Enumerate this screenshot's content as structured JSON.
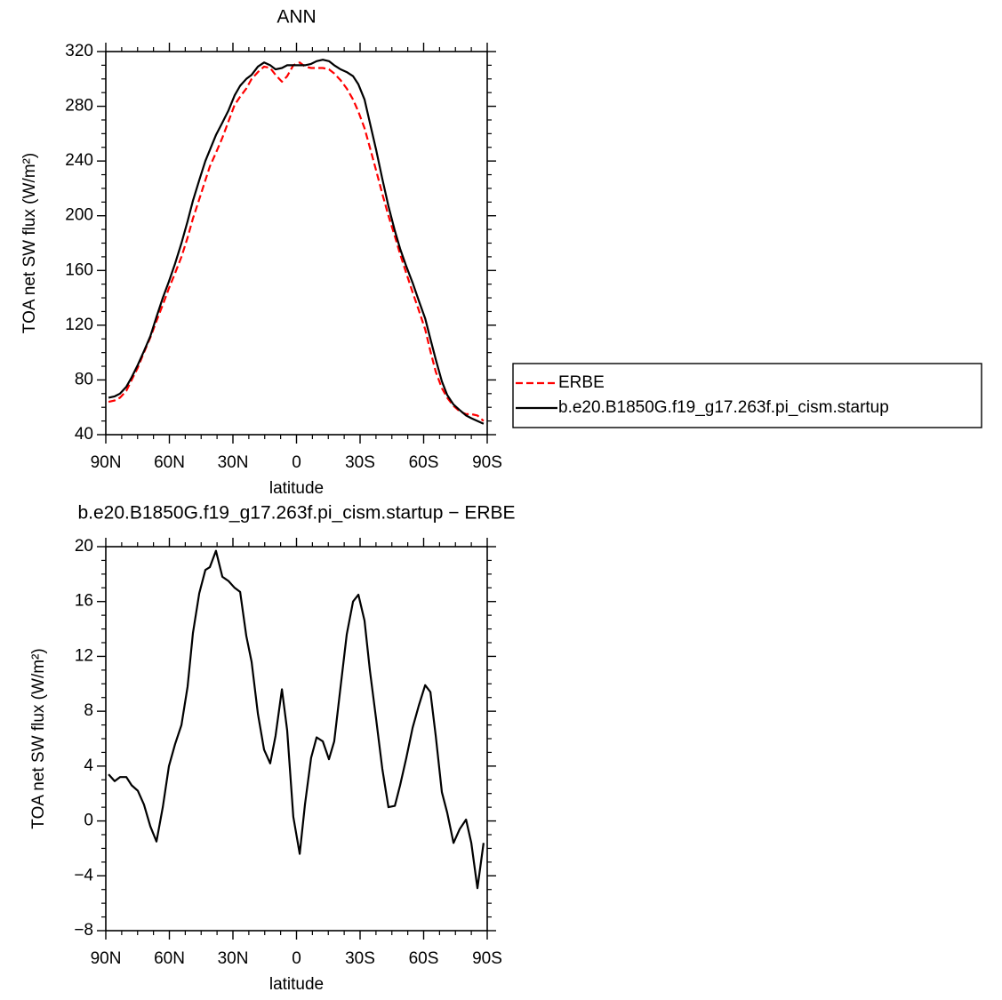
{
  "chart_data": [
    {
      "type": "line",
      "title": "ANN",
      "xlabel": "latitude",
      "ylabel": "TOA net SW flux (W/m²)",
      "xlim": [
        90,
        -90
      ],
      "xticks": [
        {
          "value": 90,
          "label": "90N"
        },
        {
          "value": 60,
          "label": "60N"
        },
        {
          "value": 30,
          "label": "30N"
        },
        0,
        {
          "value": -30,
          "label": "30S"
        },
        {
          "value": -60,
          "label": "60S"
        },
        {
          "value": -90,
          "label": "90S"
        }
      ],
      "ylim": [
        40,
        320
      ],
      "yticks": [
        40,
        80,
        120,
        160,
        200,
        240,
        280,
        320
      ],
      "legend": "right",
      "x": [
        88.7,
        85.8,
        83.3,
        80.3,
        77.8,
        74.9,
        72.0,
        69.0,
        66.1,
        63.1,
        60.2,
        57.3,
        54.3,
        51.4,
        48.9,
        45.9,
        43.0,
        40.9,
        38.0,
        35.0,
        32.1,
        29.2,
        26.6,
        23.7,
        21.2,
        18.2,
        15.3,
        12.4,
        9.9,
        6.9,
        4.4,
        1.5,
        -1.5,
        -4.0,
        -6.9,
        -9.5,
        -12.4,
        -15.3,
        -17.8,
        -20.8,
        -23.7,
        -26.7,
        -29.2,
        -32.1,
        -34.6,
        -37.6,
        -40.5,
        -43.4,
        -46.4,
        -48.9,
        -51.8,
        -54.8,
        -57.7,
        -60.7,
        -63.2,
        -65.7,
        -68.6,
        -71.1,
        -74.1,
        -77.0,
        -80.0,
        -82.5,
        -85.4,
        -88.3
      ],
      "series": [
        {
          "name": "ERBE",
          "color": "#ff0000",
          "dashed": true,
          "values": [
            64,
            65,
            67,
            72,
            80,
            89,
            100,
            111,
            123,
            135,
            147,
            158,
            170,
            184,
            198,
            212,
            226,
            236,
            246,
            257,
            269,
            281,
            287,
            293,
            300,
            305,
            309,
            308,
            303,
            298,
            302,
            310,
            312,
            309,
            308,
            308,
            308,
            307,
            304,
            299,
            293,
            285,
            276,
            264,
            250,
            233,
            216,
            200,
            185,
            172,
            158,
            144,
            131,
            117,
            101,
            86,
            74,
            67,
            61,
            57,
            55,
            55,
            54,
            50
          ]
        },
        {
          "name": "b.e20.B1850G.f19_g17.263f.pi_cism.startup",
          "color": "#000000",
          "dashed": false,
          "values": [
            67,
            68,
            70,
            75,
            82,
            91,
            101,
            112,
            126,
            140,
            152,
            165,
            180,
            196,
            211,
            226,
            240,
            248,
            259,
            268,
            277,
            288,
            295,
            300,
            303,
            309,
            312,
            310,
            307,
            308,
            310,
            310,
            310,
            310,
            311,
            313,
            314,
            313,
            310,
            307,
            305,
            302,
            296,
            285,
            268,
            248,
            227,
            207,
            189,
            176,
            163,
            151,
            138,
            125,
            110,
            95,
            79,
            69,
            62,
            58,
            54,
            52,
            50,
            48
          ]
        }
      ]
    },
    {
      "type": "line",
      "title": "b.e20.B1850G.f19_g17.263f.pi_cism.startup − ERBE",
      "xlabel": "latitude",
      "ylabel": "TOA net SW flux (W/m²)",
      "xlim": [
        90,
        -90
      ],
      "xticks": [
        {
          "value": 90,
          "label": "90N"
        },
        {
          "value": 60,
          "label": "60N"
        },
        {
          "value": 30,
          "label": "30N"
        },
        0,
        {
          "value": -30,
          "label": "30S"
        },
        {
          "value": -60,
          "label": "60S"
        },
        {
          "value": -90,
          "label": "90S"
        }
      ],
      "ylim": [
        -8,
        20
      ],
      "yticks": [
        {
          "value": -8,
          "label": "−8"
        },
        {
          "value": -4,
          "label": "−4"
        },
        0,
        4,
        8,
        12,
        16,
        20
      ],
      "x": [
        88.7,
        85.8,
        83.3,
        80.3,
        77.8,
        74.9,
        72.0,
        69.0,
        66.1,
        63.1,
        60.2,
        57.3,
        54.3,
        51.4,
        48.9,
        45.9,
        43.0,
        40.9,
        38.0,
        35.0,
        32.1,
        29.2,
        26.6,
        23.7,
        21.2,
        18.2,
        15.3,
        12.4,
        9.9,
        6.9,
        4.4,
        1.5,
        -1.5,
        -4.0,
        -6.9,
        -9.5,
        -12.4,
        -15.3,
        -17.8,
        -20.8,
        -23.7,
        -26.7,
        -29.2,
        -32.1,
        -34.6,
        -37.6,
        -40.5,
        -43.4,
        -46.4,
        -48.9,
        -51.8,
        -54.8,
        -57.7,
        -60.7,
        -63.2,
        -65.7,
        -68.6,
        -71.1,
        -74.1,
        -77.0,
        -80.0,
        -82.5,
        -85.4,
        -88.3
      ],
      "series": [
        {
          "color": "#000000",
          "dashed": false,
          "values": [
            3.4,
            2.9,
            3.2,
            3.2,
            2.6,
            2.2,
            1.2,
            -0.4,
            -1.5,
            1.0,
            4.0,
            5.6,
            7.0,
            9.8,
            13.7,
            16.6,
            18.3,
            18.5,
            19.7,
            17.8,
            17.5,
            17.0,
            16.7,
            13.5,
            11.6,
            7.8,
            5.2,
            4.2,
            6.2,
            9.6,
            6.6,
            0.3,
            -2.4,
            1.2,
            4.6,
            6.1,
            5.8,
            4.5,
            5.8,
            9.8,
            13.6,
            16.0,
            16.5,
            14.6,
            11.0,
            7.4,
            3.8,
            1.0,
            1.1,
            2.6,
            4.6,
            6.8,
            8.4,
            9.9,
            9.4,
            6.2,
            2.1,
            0.6,
            -1.6,
            -0.6,
            0.1,
            -1.6,
            -4.9,
            -1.6
          ]
        }
      ]
    }
  ]
}
